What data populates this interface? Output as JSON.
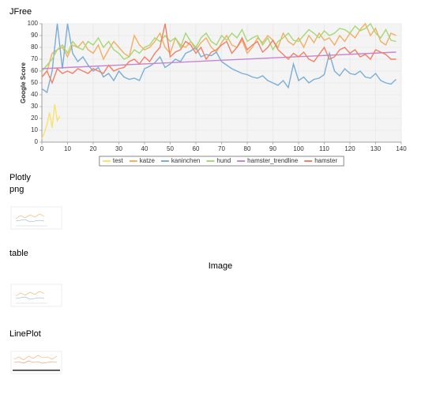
{
  "texts": {
    "jfree": "JFree",
    "plotly": "Plotly",
    "png": "png",
    "table": "table",
    "image": "Image",
    "lineplot": "LinePlot"
  },
  "chart_data": {
    "type": "line",
    "ylabel": "Google Score",
    "x": [
      0,
      2,
      4,
      6,
      8,
      10,
      12,
      14,
      16,
      18,
      20,
      22,
      24,
      26,
      28,
      30,
      32,
      34,
      36,
      38,
      40,
      42,
      44,
      46,
      48,
      50,
      52,
      54,
      56,
      58,
      60,
      62,
      64,
      66,
      68,
      70,
      72,
      74,
      76,
      78,
      80,
      82,
      84,
      86,
      88,
      90,
      92,
      94,
      96,
      98,
      100,
      102,
      104,
      106,
      108,
      110,
      112,
      114,
      116,
      118,
      120,
      122,
      124,
      126,
      128,
      130,
      132,
      134,
      136,
      138
    ],
    "series": [
      {
        "name": "test",
        "color": "#f7e36f",
        "x": [
          0,
          1,
          2,
          3,
          4,
          5,
          6,
          7
        ],
        "values": [
          3,
          8,
          15,
          25,
          12,
          32,
          18,
          22
        ]
      },
      {
        "name": "katze",
        "color": "#f5ae63",
        "values": [
          55,
          60,
          75,
          78,
          80,
          72,
          82,
          80,
          85,
          78,
          75,
          82,
          70,
          78,
          85,
          80,
          75,
          72,
          90,
          82,
          78,
          80,
          85,
          92,
          80,
          75,
          88,
          82,
          80,
          85,
          78,
          84,
          88,
          80,
          76,
          84,
          90,
          82,
          80,
          86,
          75,
          80,
          88,
          84,
          90,
          86,
          80,
          92,
          85,
          82,
          88,
          80,
          90,
          84,
          92,
          86,
          88,
          82,
          90,
          85,
          92,
          88,
          95,
          100,
          90,
          96,
          85,
          82,
          92,
          90
        ]
      },
      {
        "name": "kaninchen",
        "color": "#7aaed6",
        "values": [
          45,
          42,
          60,
          100,
          62,
          100,
          75,
          68,
          72,
          65,
          60,
          63,
          55,
          58,
          52,
          60,
          55,
          53,
          54,
          52,
          62,
          64,
          67,
          72,
          63,
          66,
          70,
          68,
          75,
          77,
          80,
          72,
          74,
          73,
          76,
          68,
          65,
          62,
          60,
          58,
          57,
          55,
          54,
          56,
          52,
          50,
          48,
          52,
          46,
          66,
          52,
          55,
          50,
          53,
          54,
          57,
          75,
          60,
          56,
          62,
          58,
          57,
          60,
          55,
          54,
          58,
          52,
          50,
          49,
          53
        ]
      },
      {
        "name": "hund",
        "color": "#a6d873",
        "values": [
          60,
          65,
          70,
          78,
          82,
          75,
          85,
          80,
          78,
          85,
          82,
          88,
          80,
          85,
          78,
          75,
          70,
          72,
          78,
          75,
          80,
          82,
          88,
          85,
          90,
          85,
          88,
          80,
          92,
          85,
          80,
          88,
          92,
          85,
          82,
          90,
          86,
          92,
          88,
          95,
          85,
          88,
          90,
          82,
          88,
          78,
          85,
          88,
          92,
          86,
          85,
          90,
          95,
          92,
          88,
          94,
          90,
          92,
          96,
          95,
          92,
          98,
          94,
          96,
          100,
          92,
          88,
          95,
          86,
          85
        ]
      },
      {
        "name": "hamster_trendline",
        "color": "#c585d0",
        "x": [
          0,
          138
        ],
        "values": [
          62,
          76
        ]
      },
      {
        "name": "hamster",
        "color": "#f27f66",
        "values": [
          55,
          60,
          50,
          62,
          58,
          60,
          58,
          62,
          60,
          58,
          62,
          60,
          58,
          65,
          60,
          62,
          63,
          68,
          70,
          66,
          72,
          68,
          75,
          80,
          100,
          72,
          76,
          78,
          85,
          82,
          75,
          80,
          70,
          76,
          78,
          82,
          85,
          75,
          80,
          88,
          78,
          82,
          85,
          76,
          80,
          86,
          78,
          74,
          70,
          75,
          72,
          76,
          70,
          68,
          74,
          80,
          70,
          72,
          78,
          80,
          75,
          78,
          72,
          74,
          70,
          78,
          76,
          74,
          70,
          70
        ]
      }
    ],
    "xlim": [
      0,
      140
    ],
    "xticks": [
      0,
      10,
      20,
      30,
      40,
      50,
      60,
      70,
      80,
      90,
      100,
      110,
      120,
      130,
      140
    ],
    "ylim": [
      0,
      100
    ],
    "yticks": [
      0,
      10,
      20,
      30,
      40,
      50,
      60,
      70,
      80,
      90,
      100
    ],
    "grid": true,
    "legend": "bottom"
  }
}
